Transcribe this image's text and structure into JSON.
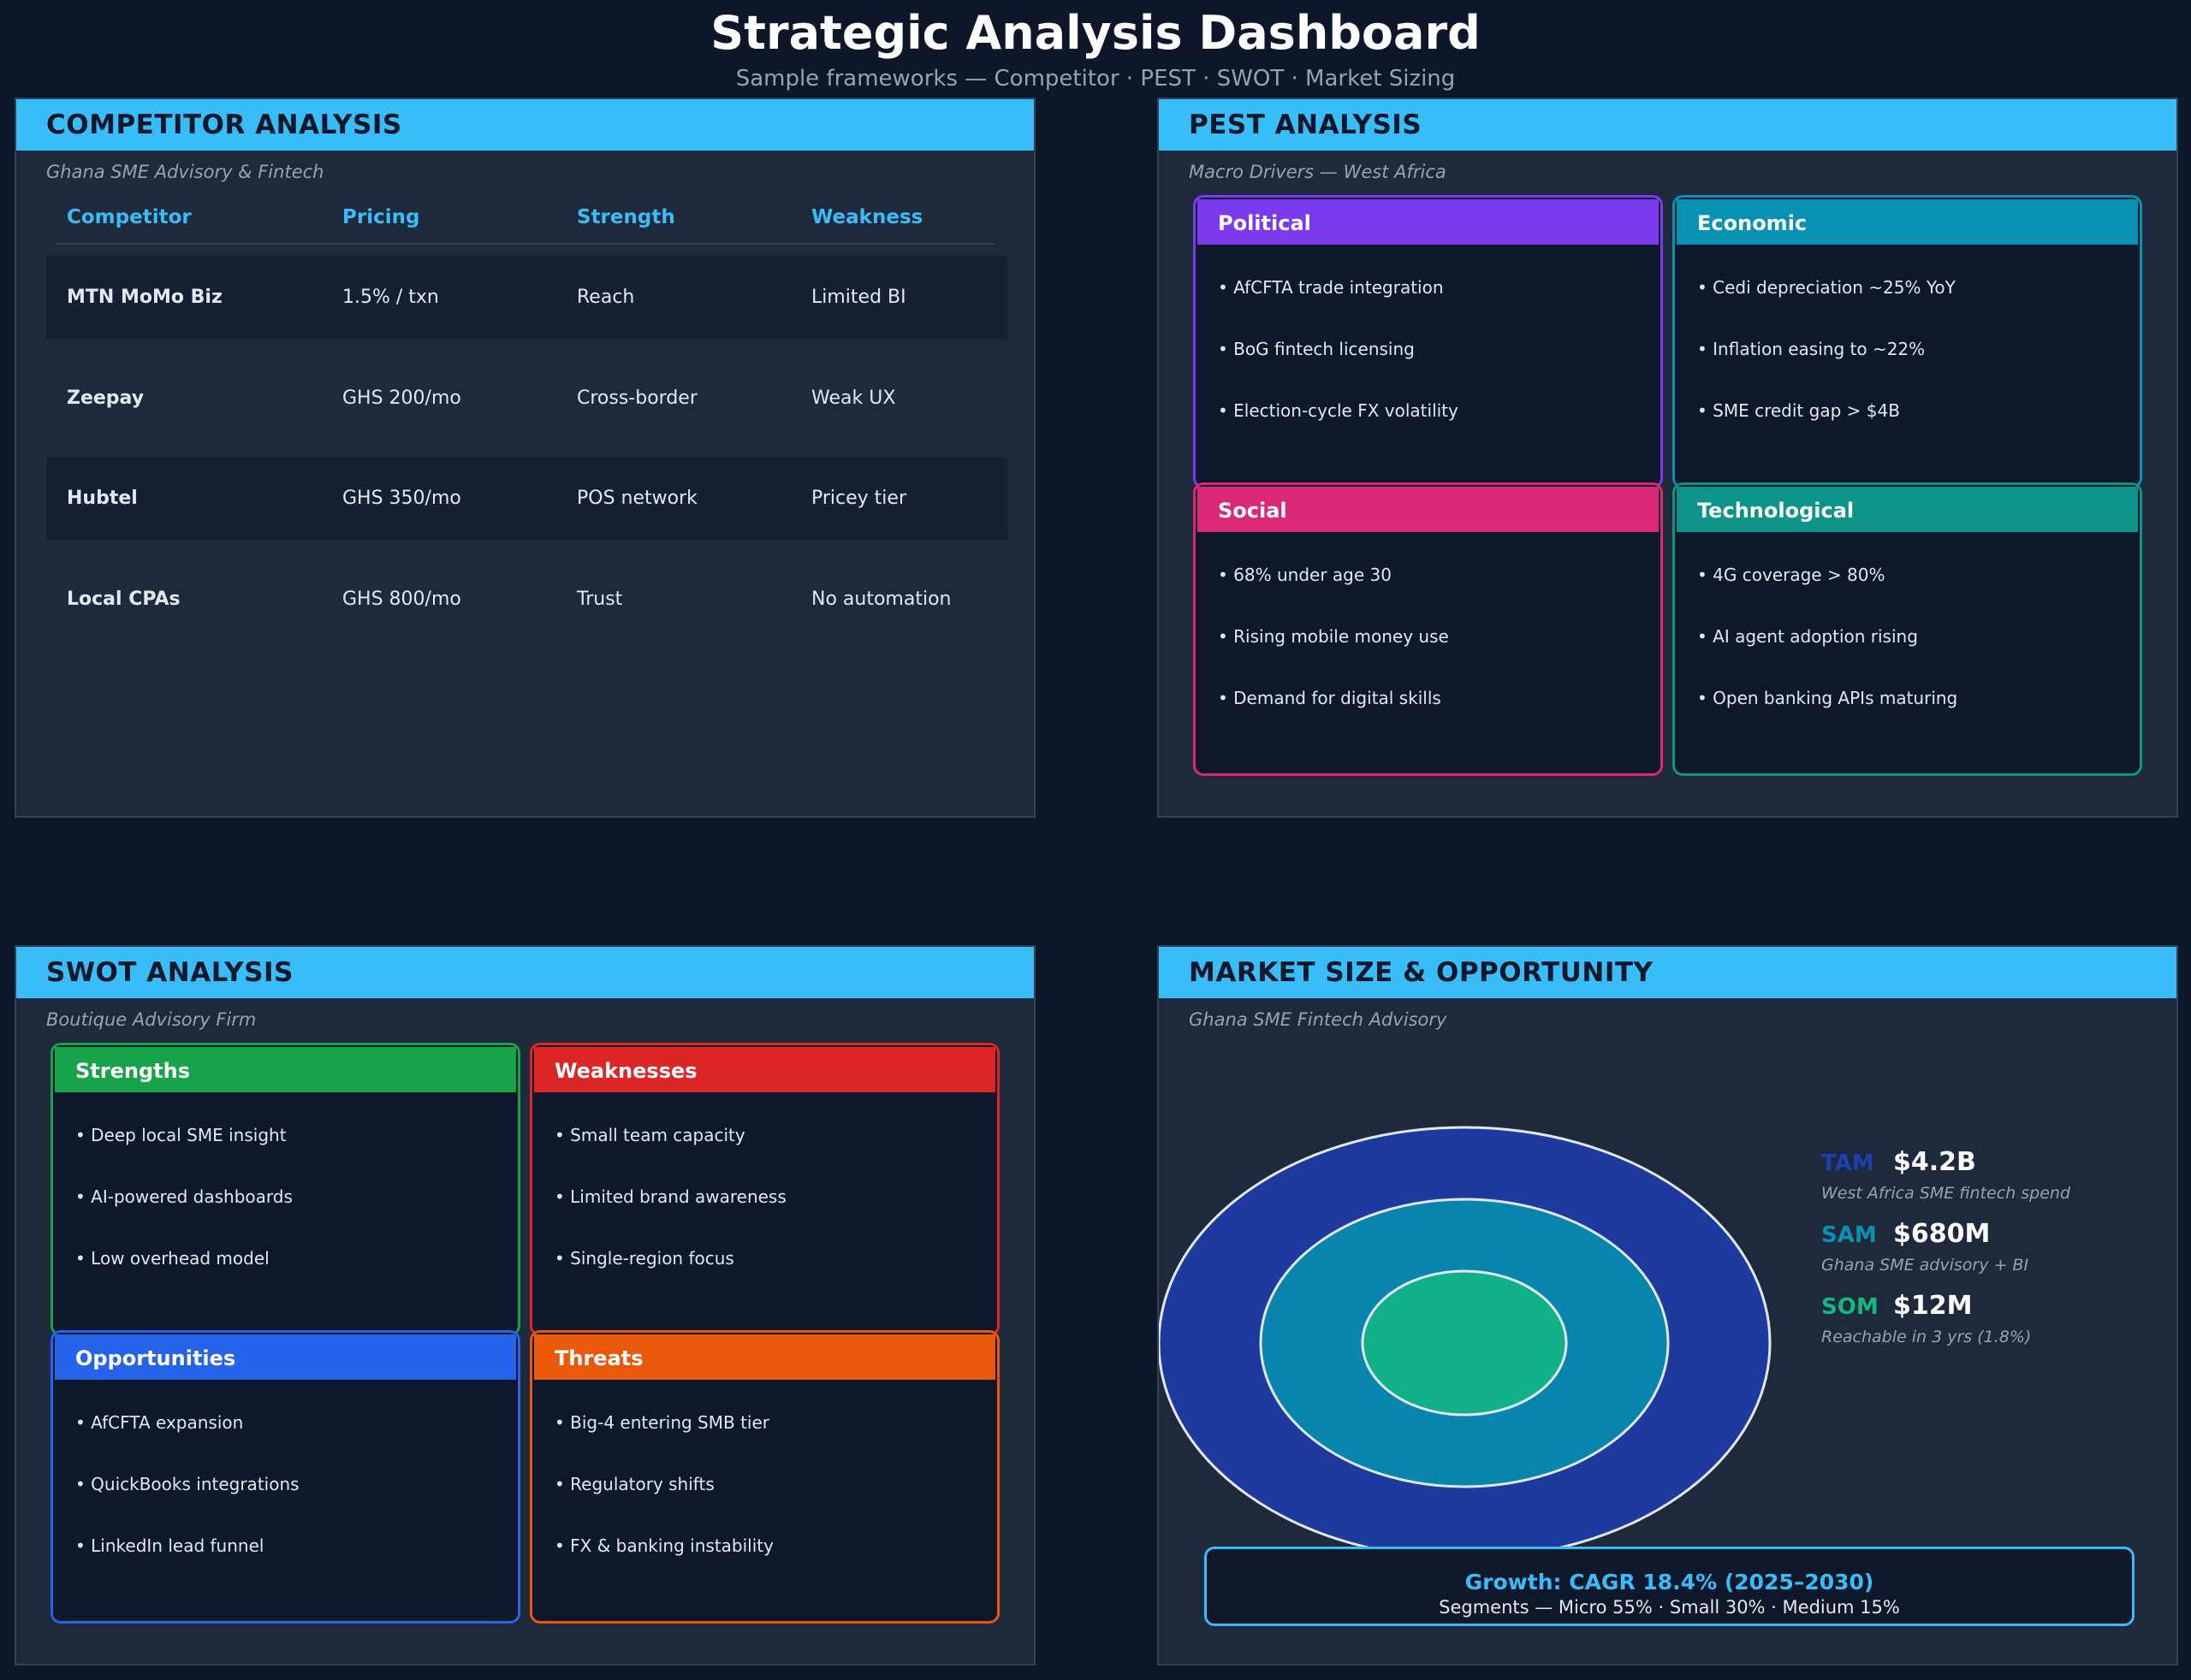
{
  "header": {
    "title": "Strategic Analysis Dashboard",
    "subtitle": "Sample frameworks — Competitor · PEST · SWOT · Market Sizing"
  },
  "competitor": {
    "title": "COMPETITOR ANALYSIS",
    "subtitle": "Ghana SME Advisory & Fintech",
    "columns": [
      "Competitor",
      "Pricing",
      "Strength",
      "Weakness"
    ],
    "rows": [
      [
        "MTN MoMo Biz",
        "1.5% / txn",
        "Reach",
        "Limited BI"
      ],
      [
        "Zeepay",
        "GHS 200/mo",
        "Cross-border",
        "Weak UX"
      ],
      [
        "Hubtel",
        "GHS 350/mo",
        "POS network",
        "Pricey tier"
      ],
      [
        "Local CPAs",
        "GHS 800/mo",
        "Trust",
        "No automation"
      ]
    ]
  },
  "pest": {
    "title": "PEST ANALYSIS",
    "subtitle": "Macro Drivers — West Africa",
    "quadrants": [
      {
        "title": "Political",
        "color": "#7c3aed",
        "items": [
          "• AfCFTA trade integration",
          "• BoG fintech licensing",
          "• Election-cycle FX volatility"
        ]
      },
      {
        "title": "Economic",
        "color": "#0891b2",
        "items": [
          "• Cedi depreciation ~25% YoY",
          "• Inflation easing to ~22%",
          "• SME credit gap > $4B"
        ]
      },
      {
        "title": "Social",
        "color": "#db2777",
        "items": [
          "• 68% under age 30",
          "• Rising mobile money use",
          "• Demand for digital skills"
        ]
      },
      {
        "title": "Technological",
        "color": "#0d9488",
        "items": [
          "• 4G coverage > 80%",
          "• AI agent adoption rising",
          "• Open banking APIs maturing"
        ]
      }
    ]
  },
  "swot": {
    "title": "SWOT ANALYSIS",
    "subtitle": "Boutique Advisory Firm",
    "quadrants": [
      {
        "title": "Strengths",
        "color": "#16a34a",
        "items": [
          "• Deep local SME insight",
          "• AI-powered dashboards",
          "• Low overhead model"
        ]
      },
      {
        "title": "Weaknesses",
        "color": "#dc2626",
        "items": [
          "• Small team capacity",
          "• Limited brand awareness",
          "• Single-region focus"
        ]
      },
      {
        "title": "Opportunities",
        "color": "#2563eb",
        "items": [
          "• AfCFTA expansion",
          "• QuickBooks integrations",
          "• LinkedIn lead funnel"
        ]
      },
      {
        "title": "Threats",
        "color": "#ea580c",
        "items": [
          "• Big-4 entering SMB tier",
          "• Regulatory shifts",
          "• FX & banking instability"
        ]
      }
    ]
  },
  "market": {
    "title": "MARKET SIZE & OPPORTUNITY",
    "subtitle": "Ghana SME Fintech Advisory",
    "tiers": [
      {
        "label": "TAM",
        "value": "$4.2B",
        "desc": "West Africa SME fintech spend",
        "color": "#1e3a9f",
        "label_color": "#1e40af"
      },
      {
        "label": "SAM",
        "value": "$680M",
        "desc": "Ghana SME advisory + BI",
        "color": "#0885ad",
        "label_color": "#0891b2"
      },
      {
        "label": "SOM",
        "value": "$12M",
        "desc": "Reachable in 3 yrs (1.8%)",
        "color": "#10b088",
        "label_color": "#10b981"
      }
    ],
    "growth_title": "Growth: CAGR 18.4% (2025–2030)",
    "growth_segments": "Segments — Micro 55% · Small 30% · Medium 15%"
  }
}
